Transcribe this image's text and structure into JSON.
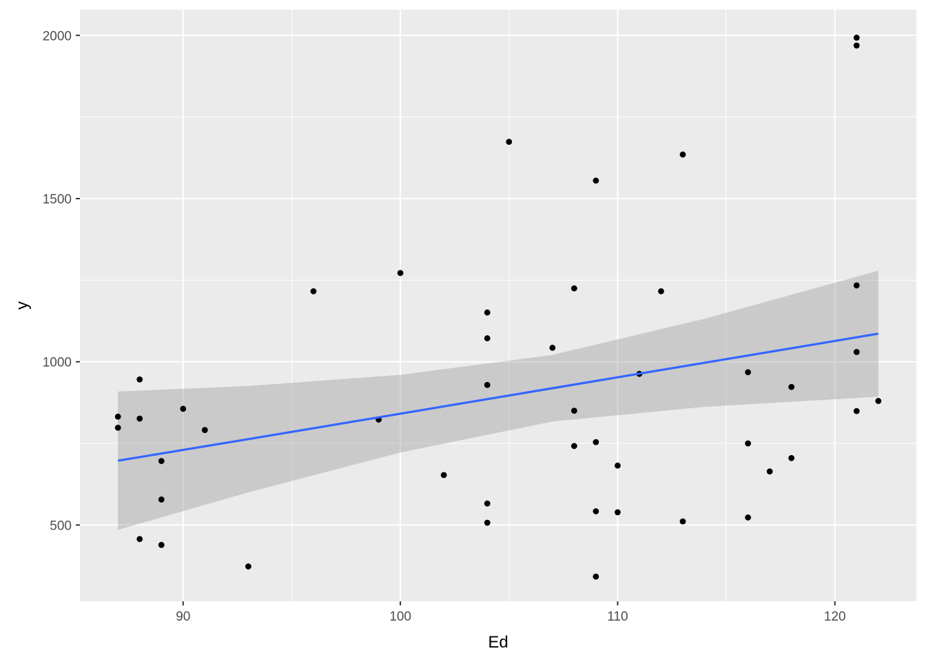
{
  "chart_data": {
    "type": "scatter",
    "title": "",
    "xlabel": "Ed",
    "ylabel": "y",
    "xlim": [
      85.25,
      123.75
    ],
    "ylim": [
      266.2,
      2078.8
    ],
    "x_ticks": [
      90,
      100,
      110,
      120
    ],
    "y_ticks": [
      500,
      1000,
      1500,
      2000
    ],
    "grid": true,
    "legend": "none",
    "points": [
      {
        "x": 87,
        "y": 832
      },
      {
        "x": 87,
        "y": 798
      },
      {
        "x": 88,
        "y": 946
      },
      {
        "x": 88,
        "y": 826
      },
      {
        "x": 88,
        "y": 457
      },
      {
        "x": 89,
        "y": 696
      },
      {
        "x": 89,
        "y": 578
      },
      {
        "x": 89,
        "y": 439
      },
      {
        "x": 90,
        "y": 856
      },
      {
        "x": 91,
        "y": 791
      },
      {
        "x": 93,
        "y": 373
      },
      {
        "x": 96,
        "y": 1216
      },
      {
        "x": 99,
        "y": 823
      },
      {
        "x": 100,
        "y": 1272
      },
      {
        "x": 102,
        "y": 653
      },
      {
        "x": 104,
        "y": 1151
      },
      {
        "x": 104,
        "y": 1072
      },
      {
        "x": 104,
        "y": 929
      },
      {
        "x": 104,
        "y": 566
      },
      {
        "x": 104,
        "y": 507
      },
      {
        "x": 105,
        "y": 1674
      },
      {
        "x": 107,
        "y": 1043
      },
      {
        "x": 108,
        "y": 1225
      },
      {
        "x": 108,
        "y": 850
      },
      {
        "x": 108,
        "y": 742
      },
      {
        "x": 109,
        "y": 1555
      },
      {
        "x": 109,
        "y": 754
      },
      {
        "x": 109,
        "y": 542
      },
      {
        "x": 109,
        "y": 342
      },
      {
        "x": 110,
        "y": 682
      },
      {
        "x": 110,
        "y": 539
      },
      {
        "x": 111,
        "y": 963
      },
      {
        "x": 112,
        "y": 1216
      },
      {
        "x": 113,
        "y": 1635
      },
      {
        "x": 113,
        "y": 511
      },
      {
        "x": 116,
        "y": 968
      },
      {
        "x": 116,
        "y": 750
      },
      {
        "x": 116,
        "y": 523
      },
      {
        "x": 117,
        "y": 664
      },
      {
        "x": 118,
        "y": 923
      },
      {
        "x": 118,
        "y": 705
      },
      {
        "x": 121,
        "y": 1993
      },
      {
        "x": 121,
        "y": 1969
      },
      {
        "x": 121,
        "y": 1234
      },
      {
        "x": 121,
        "y": 1030
      },
      {
        "x": 121,
        "y": 849
      },
      {
        "x": 122,
        "y": 880
      }
    ],
    "regression": {
      "method": "lm",
      "color": "#3366FF",
      "x": [
        87,
        93,
        100,
        107,
        114,
        122
      ],
      "fit": [
        697,
        763,
        841,
        919,
        997,
        1086
      ],
      "lower": [
        485,
        600,
        722,
        817,
        862,
        893
      ],
      "upper": [
        909,
        926,
        960,
        1021,
        1132,
        1279
      ]
    },
    "colors": {
      "panel": "#EBEBEB",
      "grid": "#FFFFFF",
      "point": "#000000",
      "band": "#999999"
    }
  }
}
